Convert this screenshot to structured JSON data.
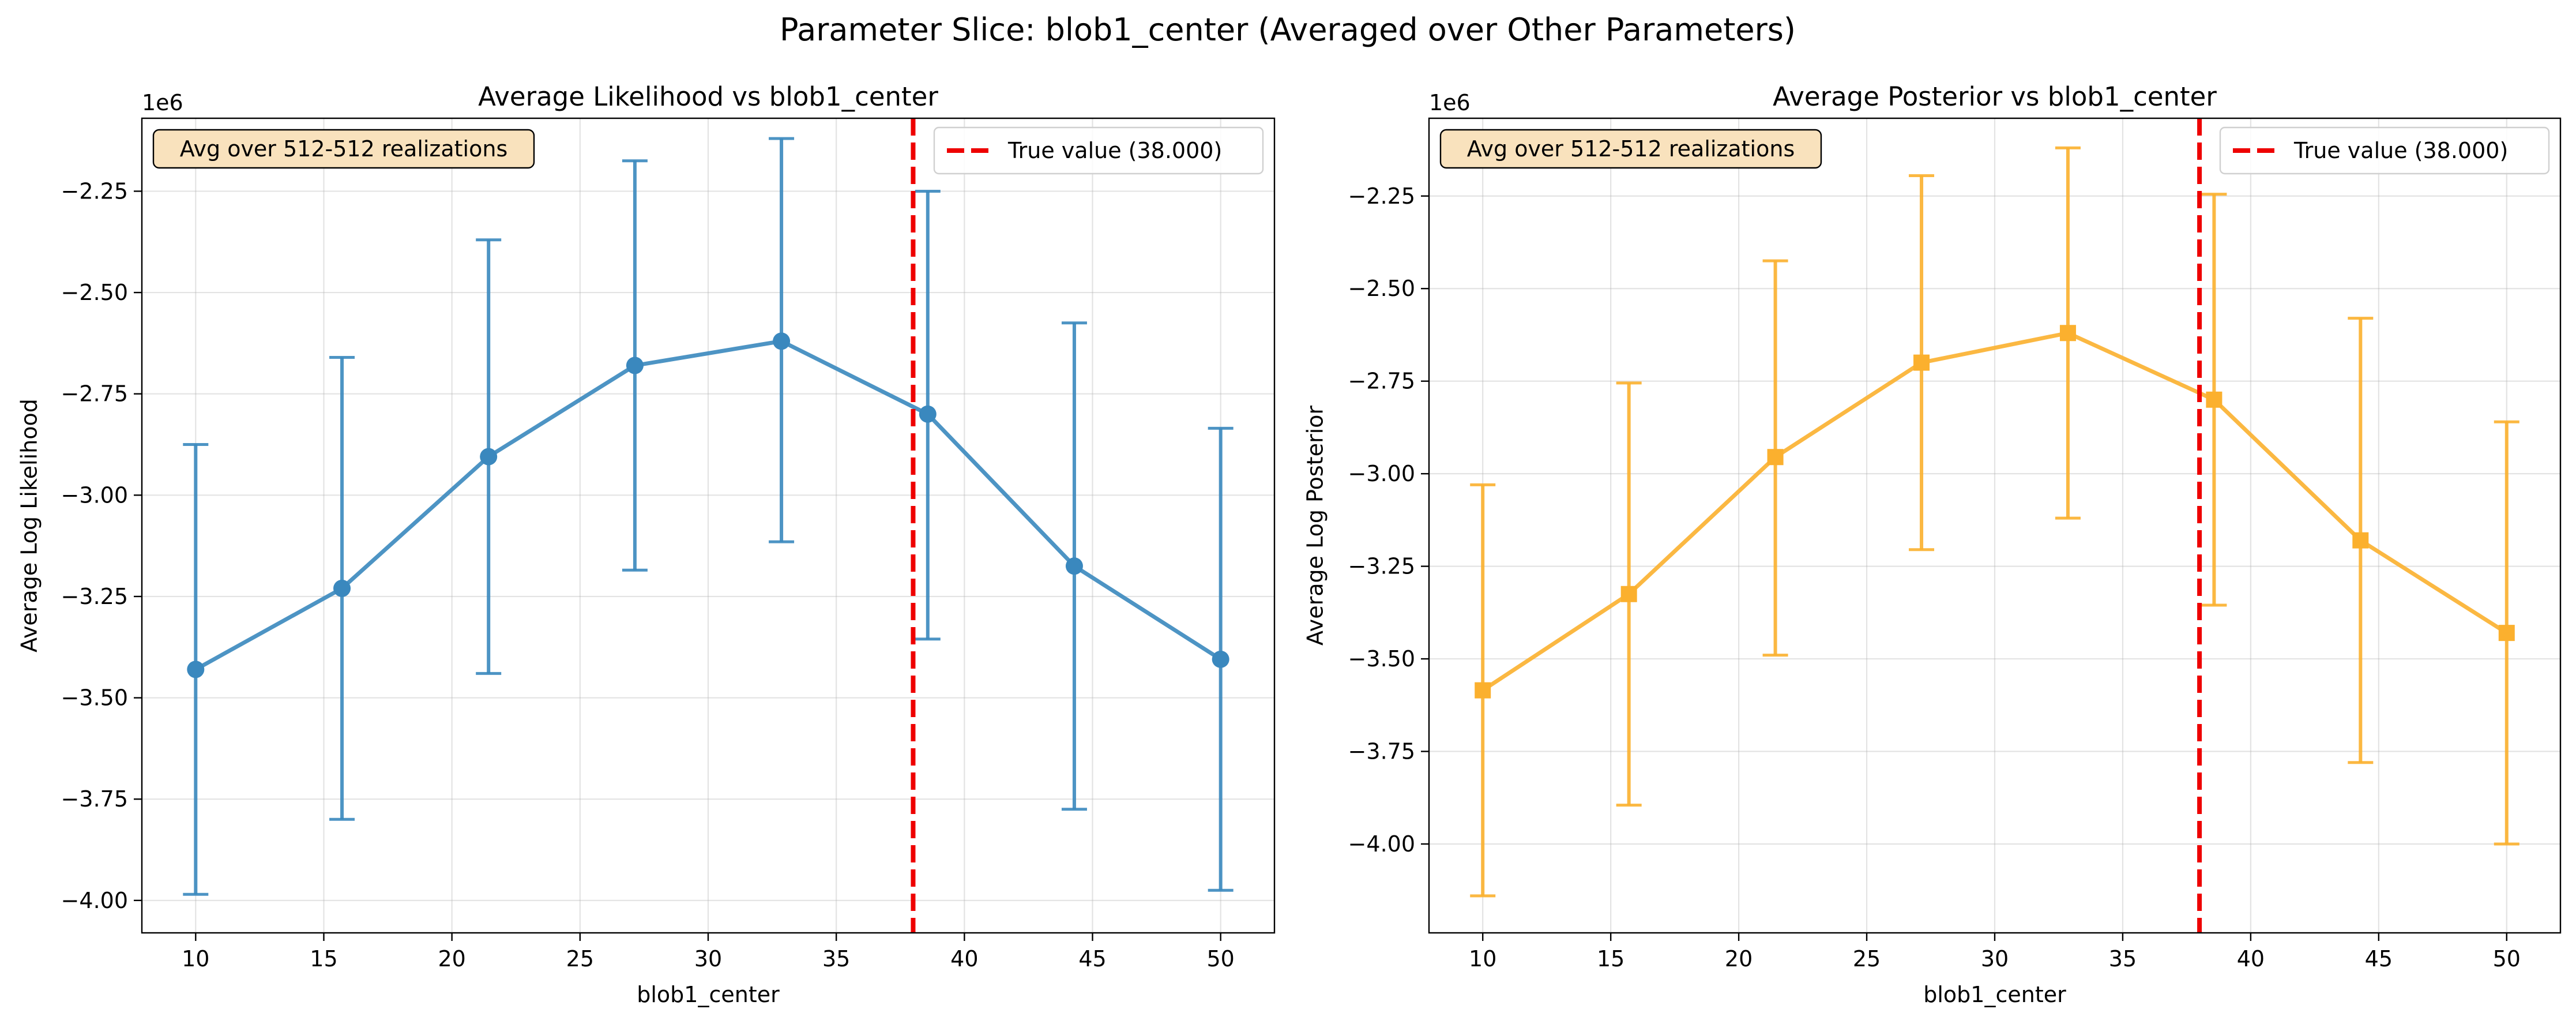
{
  "title": "Parameter Slice: blob1_center (Averaged over Other Parameters)",
  "colors": {
    "likelihood": "#3a88be",
    "posterior": "#fbb02e",
    "true_line": "#ee0000",
    "annot_bg": "#f9e2bd"
  },
  "chart_data": [
    {
      "type": "line",
      "title": "Average Likelihood vs blob1_center",
      "xlabel": "blob1_center",
      "ylabel": "Average Log Likelihood",
      "y_offset_label": "1e6",
      "y_scale": 1000000,
      "xlim": [
        7.9,
        52.1
      ],
      "ylim": [
        -4.08,
        -2.07
      ],
      "xticks": [
        10,
        15,
        20,
        25,
        30,
        35,
        40,
        45,
        50
      ],
      "xtick_labels": [
        "10",
        "15",
        "20",
        "25",
        "30",
        "35",
        "40",
        "45",
        "50"
      ],
      "yticks": [
        -4.0,
        -3.75,
        -3.5,
        -3.25,
        -3.0,
        -2.75,
        -2.5,
        -2.25
      ],
      "ytick_labels": [
        "−4.00",
        "−3.75",
        "−3.50",
        "−3.25",
        "−3.00",
        "−2.75",
        "−2.50",
        "−2.25"
      ],
      "grid": true,
      "legend_placement": "top-right",
      "marker": "circle",
      "annotation": "Avg over 512-512 realizations",
      "true_value": {
        "x": 38.0,
        "label": "True value (38.000)"
      },
      "series": [
        {
          "color": "#3a88be",
          "x": [
            10.0,
            15.71,
            21.43,
            27.14,
            32.86,
            38.57,
            44.29,
            50.0
          ],
          "y": [
            -3.43,
            -3.23,
            -2.905,
            -2.68,
            -2.62,
            -2.8,
            -3.175,
            -3.405
          ],
          "yerr_low": [
            -3.985,
            -3.8,
            -3.44,
            -3.185,
            -3.115,
            -3.355,
            -3.775,
            -3.975
          ],
          "yerr_high": [
            -2.875,
            -2.66,
            -2.37,
            -2.175,
            -2.12,
            -2.25,
            -2.575,
            -2.835
          ]
        }
      ]
    },
    {
      "type": "line",
      "title": "Average Posterior vs blob1_center",
      "xlabel": "blob1_center",
      "ylabel": "Average Log Posterior",
      "y_offset_label": "1e6",
      "y_scale": 1000000,
      "xlim": [
        7.9,
        52.1
      ],
      "ylim": [
        -4.24,
        -2.04
      ],
      "xticks": [
        10,
        15,
        20,
        25,
        30,
        35,
        40,
        45,
        50
      ],
      "xtick_labels": [
        "10",
        "15",
        "20",
        "25",
        "30",
        "35",
        "40",
        "45",
        "50"
      ],
      "yticks": [
        -4.0,
        -3.75,
        -3.5,
        -3.25,
        -3.0,
        -2.75,
        -2.5,
        -2.25
      ],
      "ytick_labels": [
        "−4.00",
        "−3.75",
        "−3.50",
        "−3.25",
        "−3.00",
        "−2.75",
        "−2.50",
        "−2.25"
      ],
      "grid": true,
      "legend_placement": "top-right",
      "marker": "square",
      "annotation": "Avg over 512-512 realizations",
      "true_value": {
        "x": 38.0,
        "label": "True value (38.000)"
      },
      "series": [
        {
          "color": "#fbb02e",
          "x": [
            10.0,
            15.71,
            21.43,
            27.14,
            32.86,
            38.57,
            44.29,
            50.0
          ],
          "y": [
            -3.585,
            -3.325,
            -2.955,
            -2.7,
            -2.62,
            -2.8,
            -3.18,
            -3.43
          ],
          "yerr_low": [
            -4.14,
            -3.895,
            -3.49,
            -3.205,
            -3.12,
            -3.355,
            -3.78,
            -4.0
          ],
          "yerr_high": [
            -3.03,
            -2.755,
            -2.425,
            -2.195,
            -2.12,
            -2.245,
            -2.58,
            -2.86
          ]
        }
      ]
    }
  ]
}
